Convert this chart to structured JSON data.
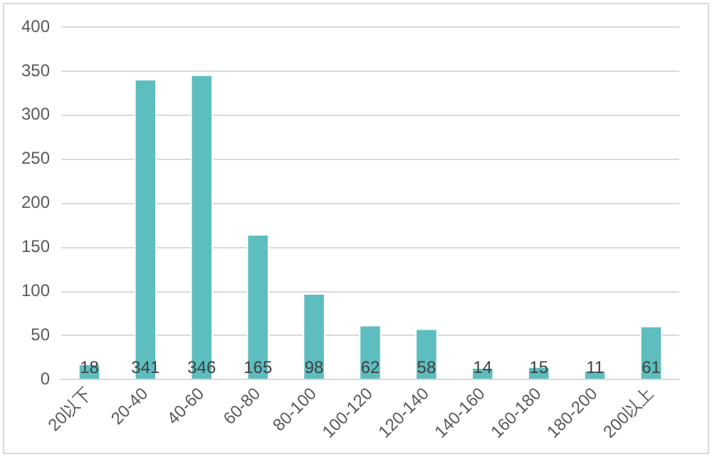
{
  "chart_data": {
    "type": "bar",
    "categories": [
      "20以下",
      "20-40",
      "40-60",
      "60-80",
      "80-100",
      "100-120",
      "120-140",
      "140-160",
      "160-180",
      "180-200",
      "200以上"
    ],
    "values": [
      18,
      341,
      346,
      165,
      98,
      62,
      58,
      14,
      15,
      11,
      61
    ],
    "color": "#5dbdbf",
    "ylim": [
      0,
      400
    ],
    "yticks": [
      0,
      50,
      100,
      150,
      200,
      250,
      300,
      350,
      400
    ],
    "grid": "y",
    "data_labels": true
  }
}
